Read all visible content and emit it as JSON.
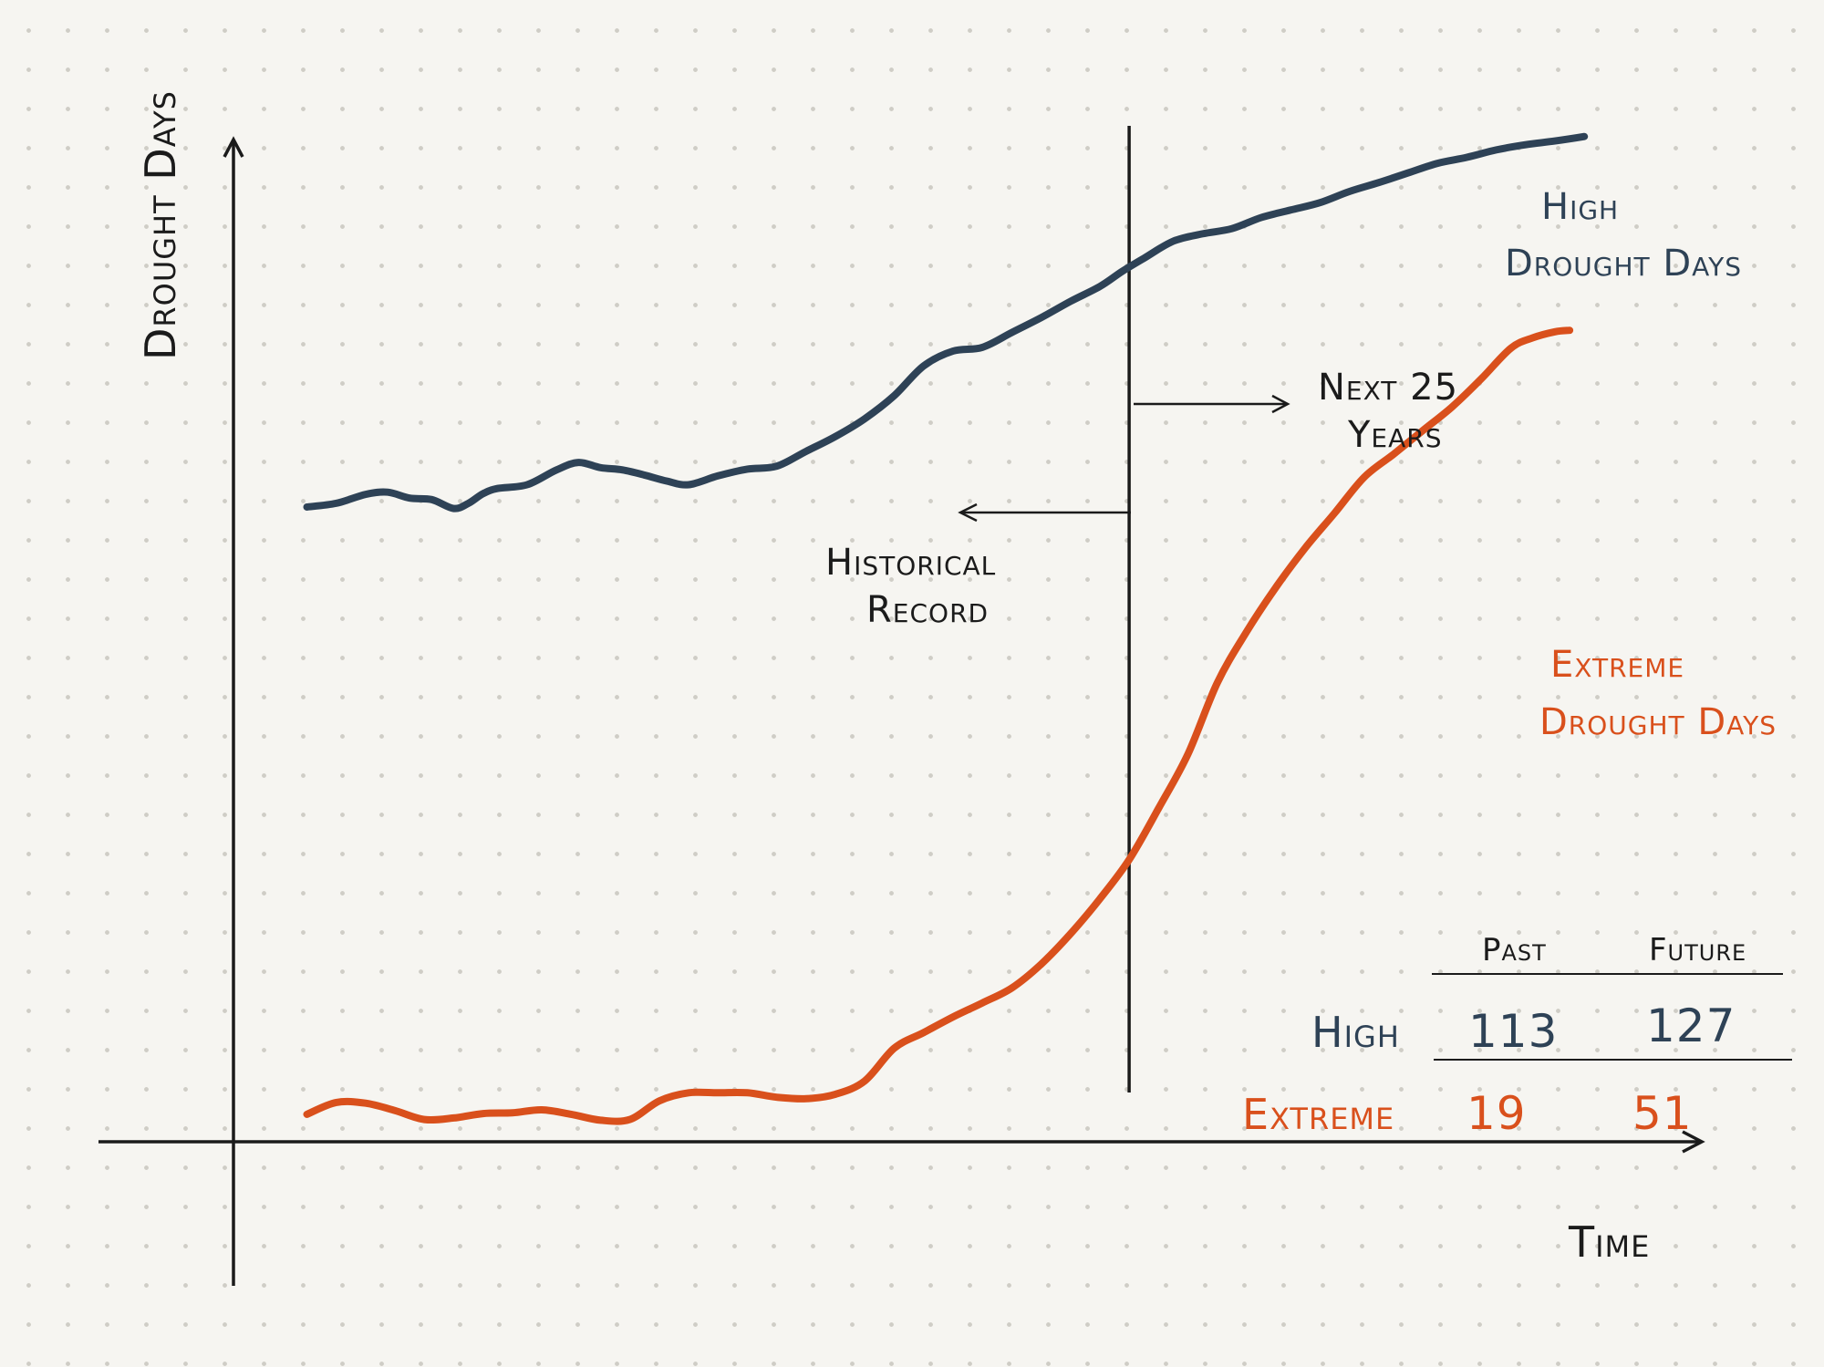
{
  "chart_data": {
    "type": "line",
    "title": "",
    "xlabel": "Time",
    "ylabel": "Drought Days",
    "xlim": [
      0,
      100
    ],
    "ylim": [
      0,
      135
    ],
    "split_x": 61,
    "annotations": {
      "future": [
        "Next 25",
        "Years"
      ],
      "past": [
        "Historical",
        "Record"
      ]
    },
    "series": [
      {
        "name": "High Drought Days",
        "label_lines": [
          "High",
          "Drought Days"
        ],
        "color": "#2e4256",
        "x": [
          5,
          7,
          9,
          10.5,
          12,
          13.5,
          15,
          16,
          17,
          18,
          20,
          22,
          23.5,
          25,
          26.5,
          28,
          29.5,
          31,
          33,
          35,
          37,
          39,
          41,
          43,
          45,
          47,
          49,
          51,
          53,
          55,
          57,
          59,
          60.5,
          62,
          64,
          66,
          68,
          70,
          72,
          74,
          76,
          78,
          80,
          82,
          84,
          86,
          88,
          90,
          92
        ],
        "values": [
          85.5,
          86,
          87.2,
          87.5,
          86.7,
          86.5,
          85.3,
          86,
          87.3,
          88,
          88.5,
          90.5,
          91.5,
          90.8,
          90.5,
          89.8,
          89,
          88.5,
          89.7,
          90.6,
          91,
          93,
          95,
          97.4,
          100.5,
          104.5,
          106.5,
          107,
          109,
          111,
          113.2,
          115.2,
          117.2,
          119,
          121.3,
          122.3,
          123,
          124.5,
          125.5,
          126.5,
          128,
          129.2,
          130.5,
          131.8,
          132.6,
          133.6,
          134.3,
          134.8,
          135.4
        ]
      },
      {
        "name": "Extreme Drought Days",
        "label_lines": [
          "Extreme",
          "Drought Days"
        ],
        "color": "#d9501c",
        "x": [
          5,
          7,
          9,
          11,
          13,
          15,
          17,
          19,
          21,
          23,
          25,
          27,
          29,
          31,
          33,
          35,
          37,
          39,
          41,
          43,
          45,
          47,
          49,
          51,
          53,
          55,
          57,
          59,
          61,
          63,
          65,
          67,
          69,
          71,
          73,
          75,
          77,
          79,
          81,
          83,
          85,
          87,
          88.5,
          90,
          91
        ],
        "values": [
          3.7,
          5.3,
          5.2,
          4.2,
          3.0,
          3.2,
          3.8,
          3.9,
          4.3,
          3.7,
          2.9,
          3.0,
          5.5,
          6.6,
          6.6,
          6.6,
          6.0,
          5.8,
          6.4,
          8.2,
          12.6,
          14.7,
          16.8,
          18.7,
          20.7,
          23.9,
          28.0,
          32.7,
          38.0,
          44.9,
          52.2,
          61.8,
          68.7,
          74.7,
          80.0,
          84.7,
          89.5,
          92.6,
          95.8,
          99.0,
          102.8,
          106.9,
          108.3,
          109.1,
          109.3
        ]
      }
    ],
    "table": {
      "columns": [
        "Past",
        "Future"
      ],
      "rows": [
        {
          "label": "High",
          "values": [
            "113",
            "127"
          ],
          "color": "#2e4256"
        },
        {
          "label": "Extreme",
          "values": [
            "19",
            "51"
          ],
          "color": "#d9501c"
        }
      ]
    }
  }
}
